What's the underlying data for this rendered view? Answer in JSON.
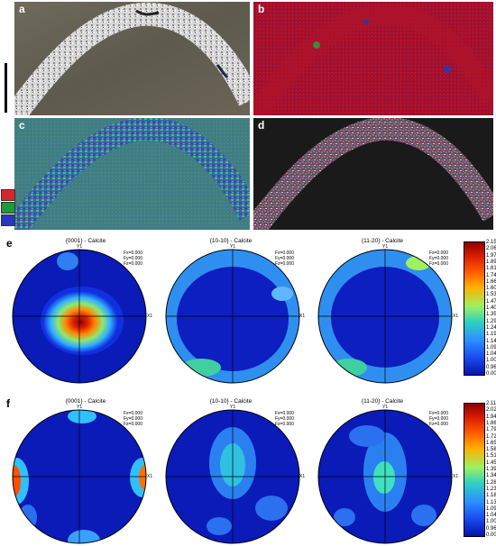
{
  "panels": {
    "a": {
      "label": "a"
    },
    "b": {
      "label": "b"
    },
    "c": {
      "label": "c"
    },
    "d": {
      "label": "d"
    }
  },
  "rows": {
    "e": {
      "label": "e",
      "plots": [
        {
          "title": "{0001} - Calcite",
          "y": "Y1",
          "x": "X1",
          "fx": "Fx=0.000",
          "fy": "Fy=0.000",
          "fz": "Fz=0.000"
        },
        {
          "title": "{10-10} - Calcite",
          "y": "Y1",
          "x": "X1",
          "fx": "Fx=0.000",
          "fy": "Fy=0.000",
          "fz": "Fz=0.000"
        },
        {
          "title": "{11-20} - Calcite",
          "y": "Y1",
          "x": "X1",
          "fx": "Fx=0.000",
          "fy": "Fy=0.000",
          "fz": "Fz=0.000"
        }
      ],
      "colorbar": [
        "2.15",
        "2.06",
        "1.97",
        "1.89",
        "1.81",
        "1.74",
        "1.66",
        "1.60",
        "1.53",
        "1.47",
        "1.40",
        "1.35",
        "1.29",
        "1.24",
        "1.19",
        "1.14",
        "1.09",
        "1.04",
        "1.00",
        "0.96",
        "0.00"
      ]
    },
    "f": {
      "label": "f",
      "plots": [
        {
          "title": "{0001} - Calcite",
          "y": "Y1",
          "x": "X1",
          "fx": "Fx=0.000",
          "fy": "Fy=0.000",
          "fz": "Fz=0.000"
        },
        {
          "title": "{10-10} - Calcite",
          "y": "Y1",
          "x": "X1",
          "fx": "Fx=0.000",
          "fy": "Fy=0.000",
          "fz": "Fz=0.000"
        },
        {
          "title": "{11-20} - Calcite",
          "y": "Y1",
          "x": "X1",
          "fx": "Fx=0.000",
          "fy": "Fy=0.000",
          "fz": "Fz=0.000"
        }
      ],
      "colorbar": [
        "2.11",
        "2.02",
        "1.94",
        "1.86",
        "1.79",
        "1.72",
        "1.65",
        "1.58",
        "1.51",
        "1.45",
        "1.39",
        "1.34",
        "1.28",
        "1.23",
        "1.18",
        "1.13",
        "1.09",
        "1.04",
        "1.00",
        "0.96",
        "0.00"
      ]
    }
  },
  "legend_icons": [
    "red-ipf-key-icon",
    "green-ipf-key-icon",
    "blue-ipf-key-icon"
  ]
}
